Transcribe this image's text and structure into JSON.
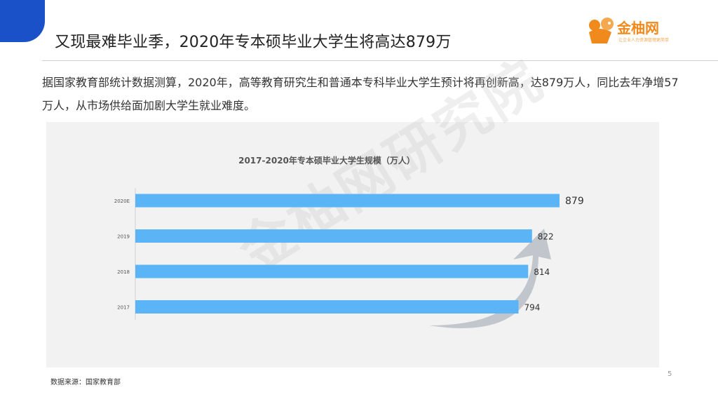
{
  "header": {
    "title": "又现最难毕业季，2020年专本硕毕业大学生将高达879万",
    "logo_text": "金柚网",
    "logo_tagline": "让企业人力资源管理更简单"
  },
  "intro": {
    "text": "据国家教育部统计数据测算，2020年，高等教育研究生和普通本专科毕业大学生预计将再创新高，达879万人，同比去年净增57万人，从市场供给面加剧大学生就业难度。"
  },
  "watermark": "金柚网研究院",
  "chart_data": {
    "type": "bar",
    "orientation": "horizontal",
    "title": "2017-2020年专本硕毕业大学生规模（万人）",
    "categories": [
      "2020E",
      "2019",
      "2018",
      "2017"
    ],
    "values": [
      879,
      822,
      814,
      794
    ],
    "highlight": "2020E",
    "colors": {
      "bar": "#5ab4f5",
      "text": "#333333"
    },
    "grid": false,
    "legend": "none"
  },
  "footer": {
    "source": "数据来源：国家教育部",
    "page_number": "5"
  },
  "colors": {
    "accent_blue": "#1a50c8",
    "logo_orange": "#f08a1c",
    "arrow_gray": "#b8bec7"
  }
}
